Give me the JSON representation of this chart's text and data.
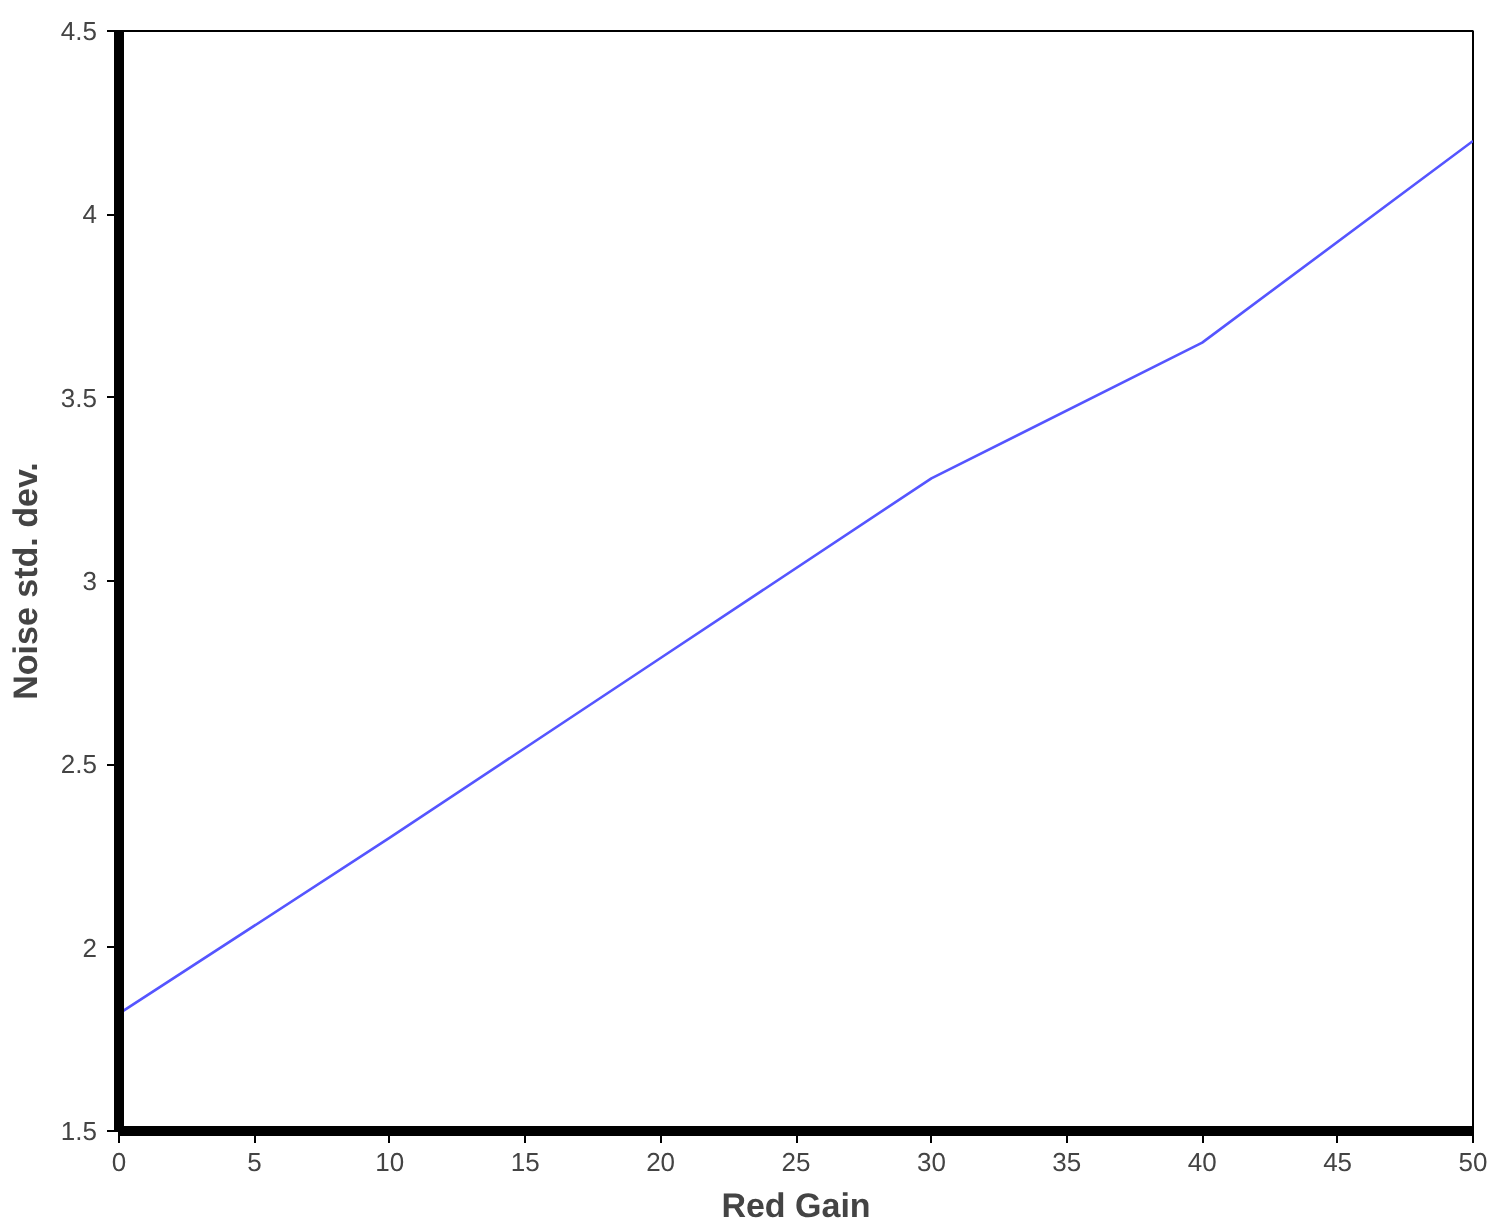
{
  "chart_data": {
    "type": "line",
    "xlabel": "Red Gain",
    "ylabel": "Noise std. dev.",
    "x": [
      0,
      10,
      20,
      30,
      40,
      50
    ],
    "series": [
      {
        "color": "#5555ff",
        "values": [
          1.82,
          2.3,
          2.79,
          3.28,
          3.65,
          4.2
        ]
      }
    ],
    "xlim": [
      0,
      50
    ],
    "ylim": [
      1.5,
      4.5
    ],
    "xticks": [
      0,
      5,
      10,
      15,
      20,
      25,
      30,
      35,
      40,
      45,
      50
    ],
    "yticks": [
      1.5,
      2,
      2.5,
      3,
      3.5,
      4,
      4.5
    ],
    "grid": false,
    "marker": "none",
    "line_style": "solid"
  }
}
